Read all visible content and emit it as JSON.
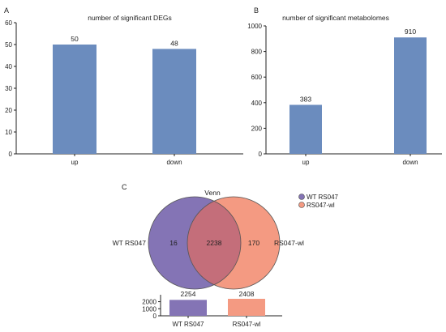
{
  "colors": {
    "bar": "#6b8cbe",
    "venn_left": "#8474b5",
    "venn_right": "#f49a82",
    "venn_overlap": "#c46e7a",
    "bar_wt": "#8474b5",
    "bar_wl": "#f49a82"
  },
  "chart_data": [
    {
      "panel": "A",
      "type": "bar",
      "title": "number of significant DEGs",
      "categories": [
        "up",
        "down"
      ],
      "values": [
        50,
        48
      ],
      "data_labels": [
        "50",
        "48"
      ],
      "ylim": [
        0,
        60
      ],
      "yticks": [
        0,
        10,
        20,
        30,
        40,
        50,
        60
      ],
      "ytick_labels": [
        "0",
        "10",
        "20",
        "30",
        "40",
        "50",
        "60"
      ],
      "grid": false
    },
    {
      "panel": "B",
      "type": "bar",
      "title": "number of significant metabolomes",
      "categories": [
        "up",
        "down"
      ],
      "values": [
        383,
        910
      ],
      "data_labels": [
        "383",
        "910"
      ],
      "ylim": [
        0,
        1000
      ],
      "yticks": [
        0,
        200,
        400,
        600,
        800,
        1000
      ],
      "ytick_labels": [
        "0",
        "200",
        "400",
        "600",
        "800",
        "1000"
      ],
      "grid": false
    },
    {
      "panel": "C",
      "type": "venn",
      "title": "Venn",
      "sets": [
        "WT RS047",
        "RS047-wl"
      ],
      "left_only": 16,
      "intersection": 2238,
      "right_only": 170,
      "left_only_label": "16",
      "intersection_label": "2238",
      "right_only_label": "170",
      "set_labels": [
        "WT RS047",
        "RS047-wl"
      ],
      "legend": [
        "WT RS047",
        "RS047-wl"
      ],
      "legend_position": "top-right",
      "totals": {
        "type": "bar",
        "categories": [
          "WT RS047",
          "RS047-wl"
        ],
        "values": [
          2254,
          2408
        ],
        "data_labels": [
          "2254",
          "2408"
        ],
        "ylim": [
          0,
          2408
        ],
        "yticks": [
          0,
          1000,
          2000
        ],
        "ytick_labels": [
          "0",
          "1000",
          "2000"
        ]
      }
    }
  ]
}
